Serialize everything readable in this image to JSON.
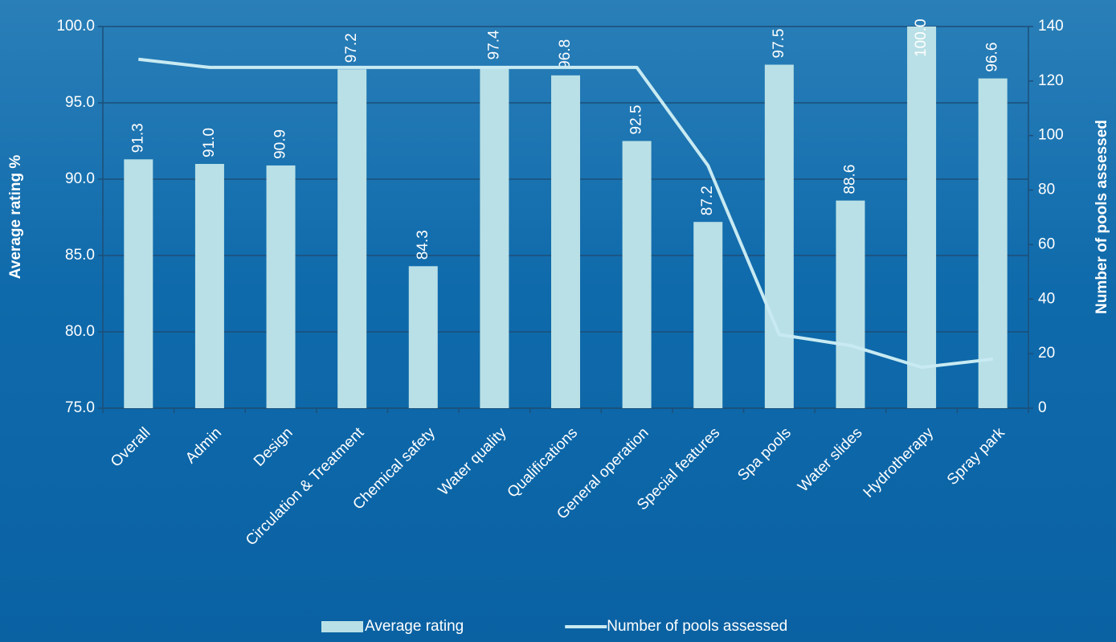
{
  "chart_data": {
    "type": "bar",
    "categories": [
      "Overall",
      "Admin",
      "Design",
      "Circulation  & Treatment",
      "Chemical safety",
      "Water quality",
      "Qualifications",
      "General operation",
      "Special features",
      "Spa pools",
      "Water slides",
      "Hydrotherapy",
      "Spray park"
    ],
    "series": [
      {
        "name": "Average rating",
        "type": "bar",
        "color": "#b9e0e6",
        "values": [
          91.3,
          91.0,
          90.9,
          97.2,
          84.3,
          97.4,
          96.8,
          92.5,
          87.2,
          97.5,
          88.6,
          100.0,
          96.6
        ],
        "value_labels": [
          "91.3",
          "91.0",
          "90.9",
          "97.2",
          "84.3",
          "97.4",
          "96.8",
          "92.5",
          "87.2",
          "97.5",
          "88.6",
          "100.0",
          "96.6"
        ]
      },
      {
        "name": "Number of pools  assessed",
        "type": "line",
        "axis": "y2",
        "color": "#c8eaf2",
        "values": [
          128,
          125,
          125,
          125,
          125,
          125,
          125,
          125,
          89,
          27,
          23,
          15,
          18
        ]
      }
    ],
    "y_label": "Average rating %",
    "y2_label": "Number of pools  assessed",
    "ylim": [
      75,
      100
    ],
    "yticks": [
      {
        "value": 75,
        "label": "75.0"
      },
      {
        "value": 80,
        "label": "80.0"
      },
      {
        "value": 85,
        "label": "85.0"
      },
      {
        "value": 90,
        "label": "90.0"
      },
      {
        "value": 95,
        "label": "95.0"
      },
      {
        "value": 100,
        "label": "100.0"
      }
    ],
    "y2lim": [
      0,
      140
    ],
    "y2ticks": [
      0,
      20,
      40,
      60,
      80,
      100,
      120,
      140
    ],
    "grid": true,
    "legend": "bottom"
  }
}
